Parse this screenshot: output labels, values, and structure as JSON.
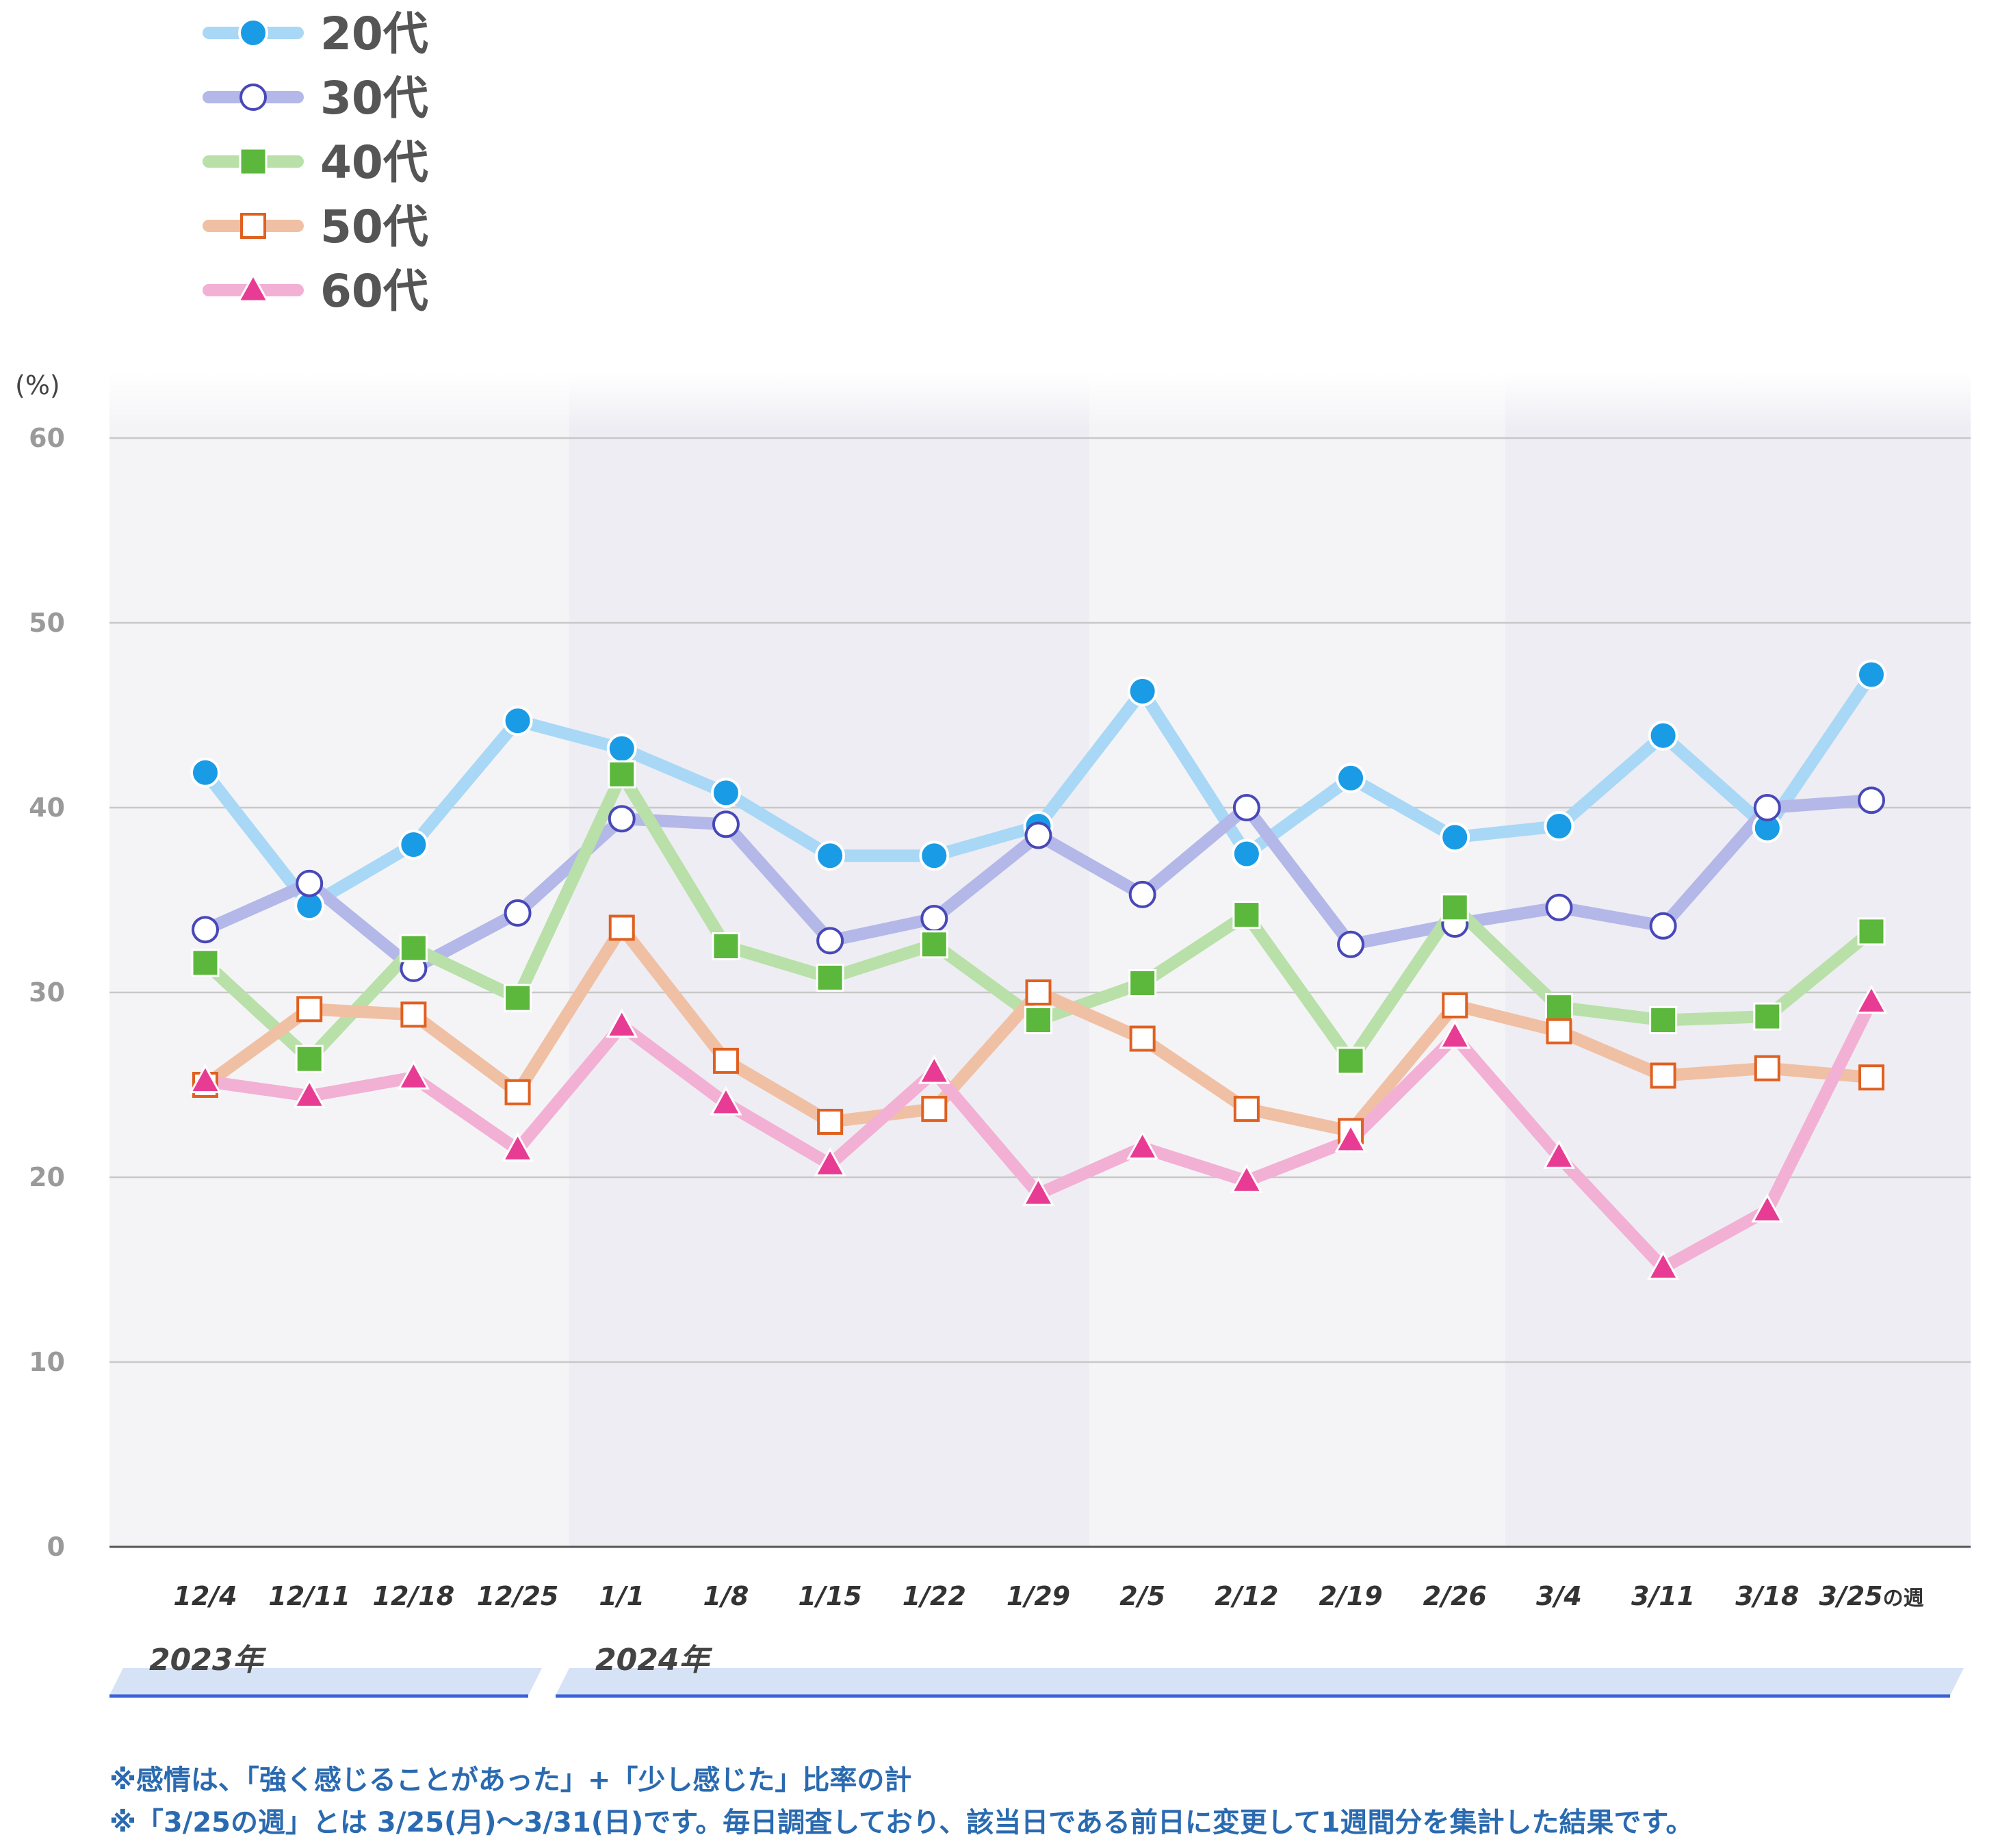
{
  "chart_data": {
    "type": "line",
    "ylabel": "(%)",
    "ylim": [
      0,
      60
    ],
    "yticks": [
      0,
      10,
      20,
      30,
      40,
      50,
      60
    ],
    "categories": [
      "12/4",
      "12/11",
      "12/18",
      "12/25",
      "1/1",
      "1/8",
      "1/15",
      "1/22",
      "1/29",
      "2/5",
      "2/12",
      "2/19",
      "2/26",
      "3/4",
      "3/11",
      "3/18",
      "3/25"
    ],
    "last_category_suffix": "の週",
    "year_labels": [
      {
        "label": "2023年",
        "from": 0,
        "to": 3
      },
      {
        "label": "2024年",
        "from": 4,
        "to": 16
      }
    ],
    "legend_position": "top-left",
    "grid": true,
    "series": [
      {
        "name": "20代",
        "marker": "filled-circle",
        "line_color": "#a8d8f5",
        "marker_color": "#1a9be6",
        "values": [
          41.9,
          34.7,
          38.0,
          44.7,
          43.2,
          40.8,
          37.4,
          37.4,
          39.0,
          46.3,
          37.5,
          41.6,
          38.4,
          39.0,
          43.9,
          38.9,
          47.2
        ]
      },
      {
        "name": "30代",
        "marker": "open-circle",
        "line_color": "#b3b8e8",
        "marker_color": "#4848b8",
        "values": [
          33.4,
          35.9,
          31.3,
          34.3,
          39.4,
          39.1,
          32.8,
          34.0,
          38.5,
          35.3,
          40.0,
          32.6,
          33.7,
          34.6,
          33.6,
          40.0,
          40.4
        ]
      },
      {
        "name": "40代",
        "marker": "filled-square",
        "line_color": "#b8e0a8",
        "marker_color": "#5cb83c",
        "values": [
          31.6,
          26.4,
          32.4,
          29.7,
          41.8,
          32.5,
          30.8,
          32.6,
          28.5,
          30.5,
          34.2,
          26.3,
          34.6,
          29.2,
          28.5,
          28.7,
          33.3
        ]
      },
      {
        "name": "50代",
        "marker": "open-square",
        "line_color": "#f0c0a4",
        "marker_color": "#e06020",
        "values": [
          25.0,
          29.1,
          28.8,
          24.6,
          33.5,
          26.3,
          23.0,
          23.7,
          30.0,
          27.5,
          23.7,
          22.5,
          29.3,
          27.9,
          25.5,
          25.9,
          25.4
        ]
      },
      {
        "name": "60代",
        "marker": "filled-triangle",
        "line_color": "#f2b0d4",
        "marker_color": "#e83c94",
        "values": [
          25.2,
          24.4,
          25.4,
          21.5,
          28.2,
          24.0,
          20.7,
          25.7,
          19.1,
          21.6,
          19.8,
          22.0,
          27.6,
          21.1,
          15.1,
          18.2,
          29.5
        ]
      }
    ]
  },
  "notes": [
    "※感情は、「強く感じることがあった」+「少し感じた」比率の計",
    "※「3/25の週」とは 3/25(月)～3/31(日)です。毎日調査しており、該当日である前日に変更して1週間分を集計した結果です。"
  ],
  "colors": {
    "background": "#ffffff",
    "plot_band_a": "#f4f4f7",
    "plot_band_b": "#eeedf3",
    "grid": "#c8c8c8",
    "axis": "#555555",
    "year_band": "#d6e2f6",
    "year_band_line": "#3b62d6",
    "note_text": "#2a6ab0"
  }
}
